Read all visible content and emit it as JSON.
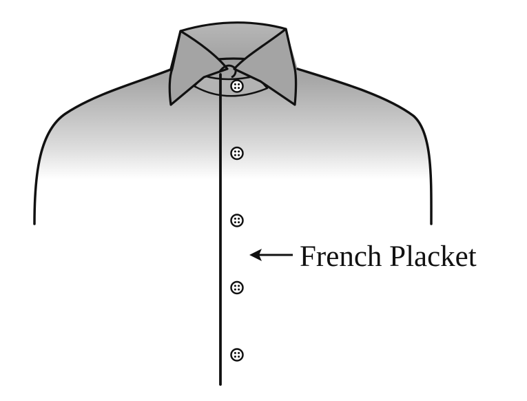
{
  "diagram": {
    "label": "French Placket",
    "colors": {
      "outline": "#111111",
      "shirt_shade_top": "#9a9a9a",
      "shirt_shade_mid": "#c9c9c9",
      "shirt_shade_bottom": "#ffffff",
      "collar_fill": "#a7a7a7",
      "button_fill": "#ffffff",
      "background": "#ffffff"
    },
    "button_count": 5,
    "icons": [
      "arrow-left-icon",
      "button-icon"
    ]
  }
}
